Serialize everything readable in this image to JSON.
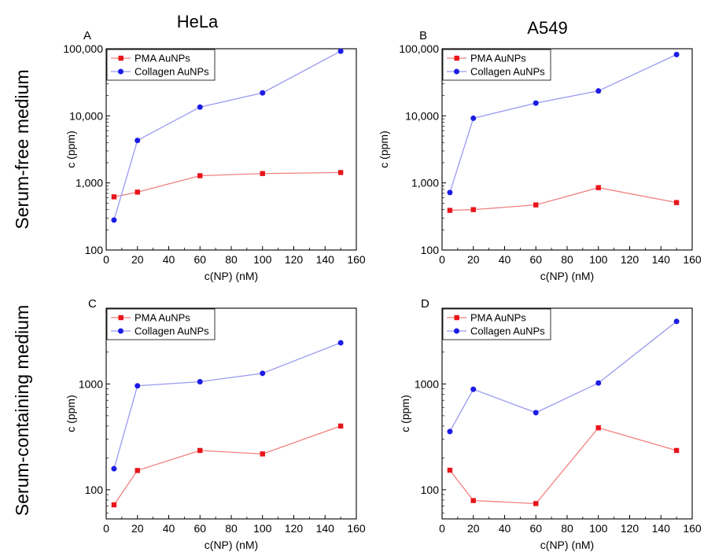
{
  "figure": {
    "column_titles": [
      "HeLa",
      "A549"
    ],
    "row_labels": [
      "Serum-free medium",
      "Serum-containing medium"
    ]
  },
  "colors": {
    "pma": "#e8141b",
    "collagen": "#1c1ce6",
    "pma_line": "#f08080",
    "collagen_line": "#9a9af0"
  },
  "chart_data": [
    {
      "type": "line",
      "panel": "A",
      "xlabel": "c(NP) (nM)",
      "ylabel": "c (ppm)",
      "x_ticks": [
        "0",
        "20",
        "40",
        "60",
        "80",
        "100",
        "120",
        "140",
        "160"
      ],
      "y_ticks": [
        "100",
        "1,000",
        "10,000",
        "100,000"
      ],
      "y_scale": "log",
      "xlim": [
        0,
        160
      ],
      "ylim": [
        100,
        100000
      ],
      "legend_position": "top-left",
      "series": [
        {
          "name": "PMA AuNPs",
          "color": "#e8141b",
          "marker": "square",
          "x": [
            5,
            20,
            60,
            100,
            150
          ],
          "values": [
            620,
            730,
            1280,
            1380,
            1430
          ]
        },
        {
          "name": "Collagen AuNPs",
          "color": "#1c1ce6",
          "marker": "circle",
          "x": [
            5,
            20,
            60,
            100,
            150
          ],
          "values": [
            280,
            4300,
            13500,
            22000,
            92000
          ]
        }
      ]
    },
    {
      "type": "line",
      "panel": "B",
      "xlabel": "c(NP) (nM)",
      "ylabel": "c (ppm)",
      "x_ticks": [
        "0",
        "20",
        "40",
        "60",
        "80",
        "100",
        "120",
        "140",
        "160"
      ],
      "y_ticks": [
        "100",
        "1,000",
        "10,000",
        "100,000"
      ],
      "y_scale": "log",
      "xlim": [
        0,
        160
      ],
      "ylim": [
        100,
        100000
      ],
      "legend_position": "top-left",
      "series": [
        {
          "name": "PMA AuNPs",
          "color": "#e8141b",
          "marker": "square",
          "x": [
            5,
            20,
            60,
            100,
            150
          ],
          "values": [
            390,
            400,
            470,
            850,
            510
          ]
        },
        {
          "name": "Collagen AuNPs",
          "color": "#1c1ce6",
          "marker": "circle",
          "x": [
            5,
            20,
            60,
            100,
            150
          ],
          "values": [
            720,
            9200,
            15500,
            23500,
            82000
          ]
        }
      ]
    },
    {
      "type": "line",
      "panel": "C",
      "xlabel": "c(NP) (nM)",
      "ylabel": "c (ppm)",
      "x_ticks": [
        "0",
        "20",
        "40",
        "60",
        "80",
        "100",
        "120",
        "140",
        "160"
      ],
      "y_ticks": [
        "100",
        "1000"
      ],
      "y_scale": "log",
      "xlim": [
        0,
        160
      ],
      "ylim": [
        53,
        5200
      ],
      "legend_position": "top-left",
      "series": [
        {
          "name": "PMA AuNPs",
          "color": "#e8141b",
          "marker": "square",
          "x": [
            5,
            20,
            60,
            100,
            150
          ],
          "values": [
            72,
            152,
            235,
            218,
            400
          ]
        },
        {
          "name": "Collagen AuNPs",
          "color": "#1c1ce6",
          "marker": "circle",
          "x": [
            5,
            20,
            60,
            100,
            150
          ],
          "values": [
            158,
            960,
            1050,
            1260,
            2450
          ]
        }
      ]
    },
    {
      "type": "line",
      "panel": "D",
      "xlabel": "c(NP) (nM)",
      "ylabel": "c (ppm)",
      "x_ticks": [
        "0",
        "20",
        "40",
        "60",
        "80",
        "100",
        "120",
        "140",
        "160"
      ],
      "y_ticks": [
        "100",
        "1000"
      ],
      "y_scale": "log",
      "xlim": [
        0,
        160
      ],
      "ylim": [
        53,
        5200
      ],
      "legend_position": "top-left",
      "series": [
        {
          "name": "PMA AuNPs",
          "color": "#e8141b",
          "marker": "square",
          "x": [
            5,
            20,
            60,
            100,
            150
          ],
          "values": [
            153,
            79,
            74,
            385,
            235
          ]
        },
        {
          "name": "Collagen AuNPs",
          "color": "#1c1ce6",
          "marker": "circle",
          "x": [
            5,
            20,
            60,
            100,
            150
          ],
          "values": [
            355,
            890,
            535,
            1020,
            3900
          ]
        }
      ]
    }
  ]
}
